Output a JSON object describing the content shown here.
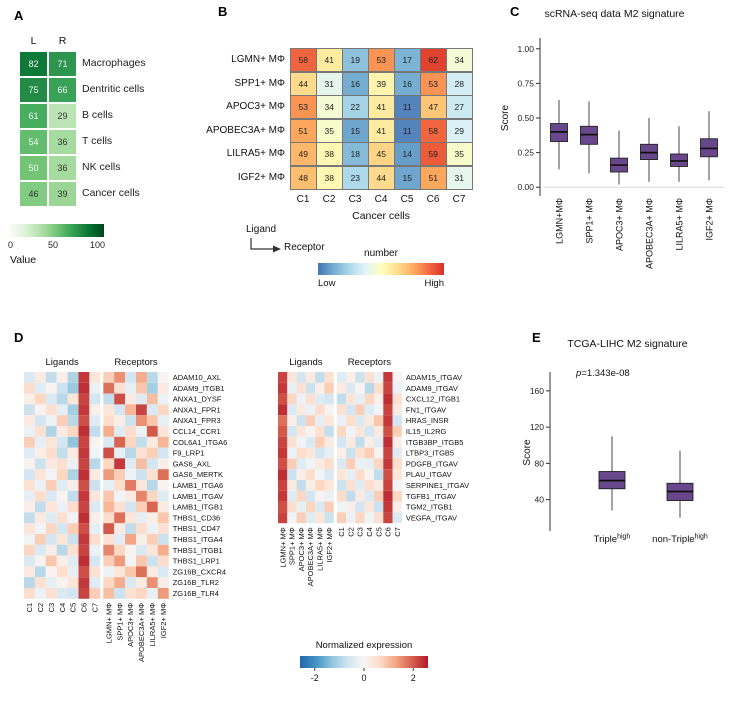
{
  "panels": {
    "a": {
      "label": "A",
      "legend": {
        "title": "Value",
        "ticks": [
          "0",
          "50",
          "100"
        ]
      }
    },
    "b": {
      "label": "B",
      "xlabel": "Cancer cells",
      "corner": {
        "top": "Ligand",
        "bottom": "Receptor"
      },
      "legend": {
        "title": "number",
        "low": "Low",
        "high": "High"
      }
    },
    "c": {
      "label": "C"
    },
    "d": {
      "label": "D",
      "colorbar": {
        "title": "Normalized expression",
        "ticks": [
          "-2",
          "0",
          "2"
        ],
        "tick_values": [
          -2,
          0,
          2
        ],
        "domain": [
          -2.6,
          2.6
        ],
        "colormap": "rdbu_r"
      }
    },
    "e": {
      "label": "E",
      "p_label": {
        "symbol": "p",
        "value": "=1.343e-08"
      }
    }
  },
  "colors": {
    "box_fill": "#68478d",
    "colormaps": {
      "greens": [
        "#f7fcf5",
        "#e5f5e0",
        "#c7e9c0",
        "#a1d99b",
        "#74c476",
        "#41ab5d",
        "#238b45",
        "#006d2c",
        "#00441b"
      ],
      "rdylbu_r": [
        "#4575b4",
        "#74add1",
        "#abd9e9",
        "#e0f3f8",
        "#ffffbf",
        "#fee090",
        "#fdae61",
        "#f46d43",
        "#d73027"
      ],
      "rdbu_r": [
        "#2166ac",
        "#4393c3",
        "#92c5de",
        "#d1e5f0",
        "#f7f7f7",
        "#fddbc7",
        "#f4a582",
        "#d6604d",
        "#b2182b"
      ]
    }
  },
  "chart_data": [
    {
      "id": "A",
      "type": "heatmap",
      "columns": [
        "L",
        "R"
      ],
      "rows": [
        "Macrophages",
        "Dentritic cells",
        "B cells",
        "T cells",
        "NK cells",
        "Cancer cells"
      ],
      "values": [
        [
          82,
          71
        ],
        [
          75,
          66
        ],
        [
          61,
          29
        ],
        [
          54,
          36
        ],
        [
          50,
          36
        ],
        [
          46,
          39
        ]
      ],
      "colormap": "greens",
      "domain": [
        0,
        100
      ]
    },
    {
      "id": "B",
      "type": "heatmap",
      "rows": [
        "LGMN+ MΦ",
        "SPP1+ MΦ",
        "APOC3+ MΦ",
        "APOBEC3A+ MΦ",
        "LILRA5+ MΦ",
        "IGF2+ MΦ"
      ],
      "columns": [
        "C1",
        "C2",
        "C3",
        "C4",
        "C5",
        "C6",
        "C7"
      ],
      "values": [
        [
          58,
          41,
          19,
          53,
          17,
          62,
          34
        ],
        [
          44,
          31,
          16,
          39,
          16,
          53,
          28
        ],
        [
          53,
          34,
          22,
          41,
          11,
          47,
          27
        ],
        [
          51,
          35,
          15,
          41,
          11,
          58,
          29
        ],
        [
          49,
          38,
          18,
          45,
          14,
          59,
          35
        ],
        [
          48,
          38,
          23,
          44,
          15,
          51,
          31
        ]
      ],
      "colormap": "rdylbu_r",
      "domain": [
        9,
        64
      ]
    },
    {
      "id": "C",
      "type": "boxplot",
      "title": "scRNA-seq data M2 signature",
      "ylabel": "Score",
      "ylim": [
        -0.02,
        1.02
      ],
      "yticks": [
        0,
        0.25,
        0.5,
        0.75,
        1.0
      ],
      "ytick_labels": [
        "0.00",
        "0.25",
        "0.50",
        "0.75",
        "1.00"
      ],
      "categories": [
        "LGMN+MΦ",
        "SPP1+ MΦ",
        "APOC3+ MΦ",
        "APOBEC3A+ MΦ",
        "LILRA5+ MΦ",
        "IGF2+ MΦ"
      ],
      "boxes": [
        {
          "low": 0.13,
          "q1": 0.33,
          "median": 0.4,
          "q3": 0.46,
          "high": 0.63
        },
        {
          "low": 0.1,
          "q1": 0.31,
          "median": 0.38,
          "q3": 0.44,
          "high": 0.62
        },
        {
          "low": 0.02,
          "q1": 0.11,
          "median": 0.16,
          "q3": 0.21,
          "high": 0.41
        },
        {
          "low": 0.04,
          "q1": 0.2,
          "median": 0.25,
          "q3": 0.31,
          "high": 0.5
        },
        {
          "low": 0.04,
          "q1": 0.15,
          "median": 0.19,
          "q3": 0.24,
          "high": 0.44
        },
        {
          "low": 0.05,
          "q1": 0.22,
          "median": 0.28,
          "q3": 0.35,
          "high": 0.55
        }
      ]
    },
    {
      "id": "D-left",
      "type": "heatmap",
      "header_ligands": "Ligands",
      "header_receptors": "Receptors",
      "ligand_columns": [
        "C1",
        "C2",
        "C3",
        "C4",
        "C5",
        "C6",
        "C7"
      ],
      "receptor_columns": [
        "LGMN+ MΦ",
        "SPP1+ MΦ",
        "APOC3+ MΦ",
        "APOBEC3A+ MΦ",
        "LILRA5+ MΦ",
        "IGF2+ MΦ"
      ],
      "rows": [
        "ADAM10_AXL",
        "ADAM9_ITGB1",
        "ANXA1_DYSF",
        "ANXA1_FPR1",
        "ANXA1_FPR3",
        "CCL14_CCR1",
        "COL6A1_ITGA6",
        "F9_LRP1",
        "GAS6_AXL",
        "GAS6_MERTK",
        "LAMB1_ITGA6",
        "LAMB1_ITGAV",
        "LAMB1_ITGB1",
        "THBS1_CD36",
        "THBS1_CD47",
        "THBS1_ITGA4",
        "THBS1_ITGB1",
        "THBS1_LRP1",
        "ZG16B_CXCR4",
        "ZG16B_TLR2",
        "ZG16B_TLR4"
      ],
      "values": [
        [
          -0.5,
          0.3,
          -0.8,
          0.2,
          -1.0,
          2.3,
          0.4,
          0.8,
          1.5,
          -0.6,
          1.2,
          -0.9,
          0.1
        ],
        [
          0.6,
          -0.4,
          0.1,
          -0.7,
          -1.2,
          2.4,
          -0.2,
          1.8,
          0.5,
          -0.3,
          0.9,
          -1.1,
          0.3
        ],
        [
          0.2,
          0.7,
          -0.5,
          -0.9,
          0.4,
          2.2,
          -0.6,
          -0.8,
          2.1,
          0.3,
          -0.4,
          1.0,
          -0.2
        ],
        [
          -0.7,
          0.1,
          0.5,
          -0.3,
          -1.1,
          2.3,
          0.2,
          0.4,
          -0.6,
          1.1,
          2.2,
          -0.5,
          0.7
        ],
        [
          0.3,
          -0.6,
          -0.2,
          0.8,
          -0.9,
          2.1,
          -0.4,
          0.6,
          0.2,
          -0.7,
          1.5,
          0.9,
          -0.3
        ],
        [
          -0.2,
          0.5,
          -1.0,
          0.3,
          0.7,
          2.4,
          -0.8,
          1.2,
          -0.4,
          0.6,
          -0.2,
          2.0,
          0.4
        ],
        [
          0.8,
          -0.3,
          0.4,
          -0.6,
          -1.3,
          2.2,
          0.1,
          -0.5,
          1.9,
          0.7,
          -0.8,
          0.3,
          1.1
        ],
        [
          -0.4,
          0.2,
          0.6,
          -0.8,
          0.3,
          2.3,
          -0.1,
          2.1,
          -0.3,
          -0.9,
          0.5,
          0.8,
          -0.6
        ],
        [
          0.1,
          -0.7,
          0.3,
          0.5,
          -0.2,
          2.2,
          -0.9,
          0.7,
          2.3,
          -0.4,
          1.0,
          -0.6,
          0.2
        ],
        [
          -0.6,
          0.4,
          -0.1,
          0.7,
          -1.0,
          2.4,
          0.3,
          1.4,
          0.8,
          -0.2,
          -0.7,
          0.5,
          1.8
        ],
        [
          0.5,
          -0.2,
          0.8,
          -0.4,
          0.2,
          2.1,
          -0.7,
          -0.3,
          0.6,
          1.7,
          0.4,
          -0.9,
          0.1
        ],
        [
          -0.3,
          0.6,
          -0.5,
          0.1,
          -0.8,
          2.3,
          0.4,
          0.9,
          -0.1,
          0.3,
          1.6,
          0.7,
          -0.4
        ],
        [
          0.2,
          -0.8,
          0.4,
          -0.2,
          0.6,
          2.2,
          -0.5,
          1.1,
          0.5,
          -0.6,
          0.8,
          1.9,
          0.3
        ],
        [
          -0.8,
          0.3,
          -0.4,
          0.5,
          -0.1,
          2.4,
          0.2,
          0.6,
          1.8,
          0.4,
          -0.3,
          0.2,
          0.9
        ],
        [
          0.4,
          -0.1,
          0.7,
          -0.6,
          0.8,
          2.1,
          -0.3,
          2.0,
          0.3,
          -0.8,
          0.6,
          -0.2,
          0.5
        ],
        [
          -0.1,
          0.8,
          -0.6,
          0.4,
          -0.7,
          2.3,
          0.6,
          0.5,
          -0.4,
          1.3,
          0.2,
          0.8,
          -0.7
        ],
        [
          0.7,
          -0.5,
          0.2,
          -0.9,
          0.5,
          2.2,
          -0.2,
          1.6,
          0.7,
          0.1,
          -0.5,
          0.4,
          1.2
        ],
        [
          -0.5,
          0.1,
          0.9,
          0.2,
          -0.4,
          2.4,
          -0.6,
          0.8,
          1.4,
          -0.1,
          0.9,
          -0.7,
          0.6
        ],
        [
          0.3,
          -0.9,
          0.1,
          0.6,
          -0.3,
          2.1,
          0.5,
          -0.2,
          0.4,
          0.9,
          1.8,
          0.3,
          -0.5
        ],
        [
          -0.9,
          0.5,
          -0.3,
          0.1,
          0.4,
          2.3,
          -0.4,
          0.7,
          1.2,
          -0.5,
          0.3,
          1.5,
          0.2
        ],
        [
          0.6,
          -0.2,
          0.5,
          -0.5,
          -0.6,
          2.2,
          0.8,
          1.0,
          -0.7,
          0.5,
          0.7,
          -0.3,
          1.4
        ]
      ],
      "colormap": "rdbu_r",
      "domain": [
        -2.6,
        2.6
      ]
    },
    {
      "id": "D-right",
      "type": "heatmap",
      "header_ligands": "Ligands",
      "header_receptors": "Receptors",
      "ligand_columns": [
        "LGMN+ MΦ",
        "SPP1+ MΦ",
        "APOC3+ MΦ",
        "APOBEC3A+ MΦ",
        "LILRA5+ MΦ",
        "IGF2+ MΦ"
      ],
      "receptor_columns": [
        "C1",
        "C2",
        "C3",
        "C4",
        "C5",
        "C6",
        "C7"
      ],
      "rows": [
        "ADAM15_ITGAV",
        "ADAM9_ITGAV",
        "CXCL12_ITGB1",
        "FN1_ITGAV",
        "HRAS_INSR",
        "IL15_IL2RG",
        "ITGB3BP_ITGB5",
        "LTBP3_ITGB5",
        "PDGFB_ITGAV",
        "PLAU_ITGAV",
        "SERPINE1_ITGAV",
        "TGFB1_ITGAV",
        "TGM2_ITGB1",
        "VEGFA_ITGAV"
      ],
      "values": [
        [
          2.2,
          0.4,
          -0.6,
          0.3,
          -0.8,
          0.5,
          -0.4,
          0.2,
          -0.7,
          0.5,
          -0.2,
          2.3,
          0.1
        ],
        [
          2.3,
          -0.3,
          0.5,
          -0.7,
          0.2,
          0.8,
          0.3,
          -0.5,
          0.1,
          -0.9,
          0.6,
          2.2,
          -0.2
        ],
        [
          2.1,
          0.7,
          -0.2,
          0.5,
          -0.4,
          -0.6,
          -0.8,
          0.4,
          -0.3,
          0.7,
          0.2,
          2.4,
          0.5
        ],
        [
          2.4,
          -0.5,
          0.3,
          -0.2,
          0.6,
          0.1,
          0.5,
          -0.6,
          0.8,
          -0.4,
          -0.1,
          2.2,
          0.3
        ],
        [
          1.8,
          0.2,
          -0.7,
          0.8,
          -0.3,
          0.4,
          -0.2,
          0.6,
          -0.5,
          0.3,
          0.9,
          2.3,
          -0.6
        ],
        [
          2.0,
          -0.6,
          0.4,
          0.1,
          0.5,
          -0.8,
          0.7,
          -0.1,
          0.4,
          -0.6,
          0.3,
          2.1,
          0.8
        ],
        [
          2.2,
          0.5,
          -0.1,
          -0.5,
          0.8,
          0.3,
          -0.6,
          0.3,
          -0.8,
          0.2,
          -0.4,
          2.4,
          0.2
        ],
        [
          2.3,
          -0.2,
          0.6,
          0.4,
          -0.6,
          -0.3,
          0.2,
          -0.7,
          0.5,
          0.8,
          0.1,
          2.2,
          -0.4
        ],
        [
          2.1,
          0.8,
          -0.4,
          -0.1,
          0.3,
          0.6,
          -0.5,
          0.8,
          -0.2,
          -0.3,
          0.7,
          2.3,
          0.6
        ],
        [
          2.4,
          -0.7,
          0.2,
          0.6,
          -0.1,
          -0.5,
          0.4,
          -0.3,
          0.6,
          0.1,
          -0.8,
          2.1,
          0.4
        ],
        [
          2.2,
          0.3,
          -0.8,
          0.2,
          0.7,
          0.4,
          -0.7,
          0.5,
          -0.4,
          0.6,
          0.3,
          2.2,
          -0.1
        ],
        [
          2.3,
          -0.4,
          0.7,
          -0.6,
          0.1,
          -0.2,
          0.6,
          -0.8,
          0.3,
          -0.5,
          0.8,
          2.4,
          0.7
        ],
        [
          2.1,
          0.6,
          -0.3,
          0.7,
          -0.5,
          0.8,
          -0.1,
          0.2,
          -0.6,
          0.4,
          -0.7,
          2.3,
          0.2
        ],
        [
          2.2,
          -0.1,
          0.8,
          -0.4,
          0.4,
          -0.7,
          0.8,
          -0.2,
          0.7,
          -0.1,
          0.5,
          2.2,
          -0.5
        ]
      ],
      "colormap": "rdbu_r",
      "domain": [
        -2.6,
        2.6
      ]
    },
    {
      "id": "E",
      "type": "boxplot",
      "title": "TCGA-LIHC M2 signature",
      "ylabel": "Score",
      "ylim": [
        12,
        172
      ],
      "yticks": [
        40,
        80,
        120,
        160
      ],
      "ytick_labels": [
        "40",
        "80",
        "120",
        "160"
      ],
      "categories": [
        {
          "base": "Triple",
          "sup": "high"
        },
        {
          "base": "non-Triple",
          "sup": "high"
        }
      ],
      "boxes": [
        {
          "low": 28,
          "q1": 52,
          "median": 61,
          "q3": 71,
          "high": 110
        },
        {
          "low": 20,
          "q1": 39,
          "median": 49,
          "q3": 58,
          "high": 94
        }
      ]
    }
  ]
}
